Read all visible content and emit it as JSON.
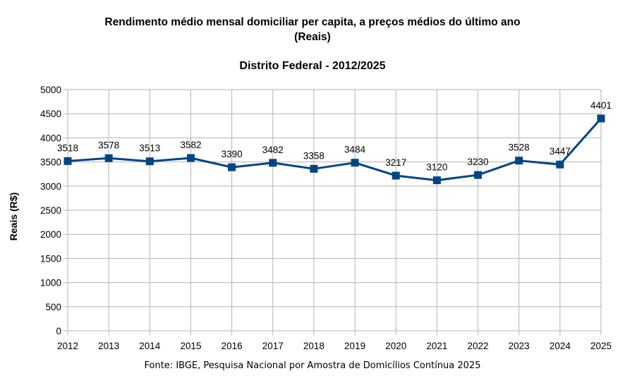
{
  "page": {
    "title_line1": "Rendimento médio mensal domiciliar per capita, a preços médios do último ano",
    "title_line2": "(Reais)",
    "subtitle": "Distrito Federal - 2012/2025",
    "source": "Fonte: IBGE, Pesquisa Nacional por Amostra de Domicílios Contínua 2025"
  },
  "chart_data": {
    "type": "line",
    "title": "Rendimento médio mensal domiciliar per capita, a preços médios do último ano (Reais)",
    "subtitle": "Distrito Federal - 2012/2025",
    "xlabel": "",
    "ylabel": "Reais (R$)",
    "categories": [
      "2012",
      "2013",
      "2014",
      "2015",
      "2016",
      "2017",
      "2018",
      "2019",
      "2020",
      "2021",
      "2022",
      "2023",
      "2024",
      "2025"
    ],
    "series": [
      {
        "values": [
          3518,
          3578,
          3513,
          3582,
          3390,
          3482,
          3358,
          3484,
          3217,
          3120,
          3230,
          3528,
          3447,
          4401
        ]
      }
    ],
    "ylim": [
      0,
      5000
    ],
    "yticks": [
      0,
      500,
      1000,
      1500,
      2000,
      2500,
      3000,
      3500,
      4000,
      4500,
      5000
    ],
    "grid": true,
    "legend": "none",
    "line_color": "#004586"
  }
}
